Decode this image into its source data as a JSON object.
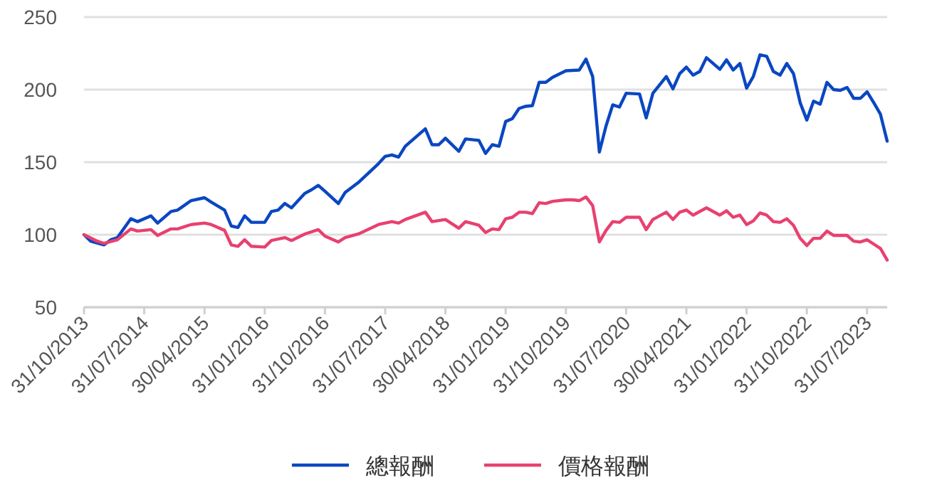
{
  "chart_data": {
    "type": "line",
    "xlim": [
      "2013-10",
      "2023-10"
    ],
    "ylim": [
      50,
      250
    ],
    "yticks": [
      50,
      100,
      150,
      200,
      250
    ],
    "xticks": [
      {
        "value": "2013-10",
        "label": "31/10/2013"
      },
      {
        "value": "2014-07",
        "label": "31/07/2014"
      },
      {
        "value": "2015-04",
        "label": "30/04/2015"
      },
      {
        "value": "2016-01",
        "label": "31/01/2016"
      },
      {
        "value": "2016-10",
        "label": "31/10/2016"
      },
      {
        "value": "2017-07",
        "label": "31/07/2017"
      },
      {
        "value": "2018-04",
        "label": "30/04/2018"
      },
      {
        "value": "2019-01",
        "label": "31/01/2019"
      },
      {
        "value": "2019-10",
        "label": "31/10/2019"
      },
      {
        "value": "2020-07",
        "label": "31/07/2020"
      },
      {
        "value": "2021-04",
        "label": "30/04/2021"
      },
      {
        "value": "2022-01",
        "label": "31/01/2022"
      },
      {
        "value": "2022-10",
        "label": "31/10/2022"
      },
      {
        "value": "2023-07",
        "label": "31/07/2023"
      }
    ],
    "grid": "y",
    "legend": "bottom",
    "marker": "none",
    "line_style": "solid",
    "series": [
      {
        "name": "總報酬",
        "color": "#0a47c1",
        "x": [
          "2013-10",
          "2013-11",
          "2014-01",
          "2014-02",
          "2014-03",
          "2014-05",
          "2014-06",
          "2014-08",
          "2014-09",
          "2014-11",
          "2014-12",
          "2015-02",
          "2015-04",
          "2015-05",
          "2015-07",
          "2015-08",
          "2015-09",
          "2015-10",
          "2015-11",
          "2016-01",
          "2016-02",
          "2016-03",
          "2016-04",
          "2016-05",
          "2016-07",
          "2016-08",
          "2016-09",
          "2016-10",
          "2016-12",
          "2017-01",
          "2017-03",
          "2017-06",
          "2017-07",
          "2017-08",
          "2017-09",
          "2017-10",
          "2018-01",
          "2018-02",
          "2018-03",
          "2018-04",
          "2018-06",
          "2018-07",
          "2018-09",
          "2018-10",
          "2018-11",
          "2018-12",
          "2019-01",
          "2019-02",
          "2019-03",
          "2019-04",
          "2019-05",
          "2019-06",
          "2019-07",
          "2019-08",
          "2019-10",
          "2019-12",
          "2020-01",
          "2020-02",
          "2020-03",
          "2020-04",
          "2020-05",
          "2020-06",
          "2020-07",
          "2020-09",
          "2020-10",
          "2020-11",
          "2021-01",
          "2021-02",
          "2021-03",
          "2021-04",
          "2021-05",
          "2021-06",
          "2021-07",
          "2021-09",
          "2021-10",
          "2021-11",
          "2021-12",
          "2022-01",
          "2022-02",
          "2022-03",
          "2022-04",
          "2022-05",
          "2022-06",
          "2022-07",
          "2022-08",
          "2022-09",
          "2022-10",
          "2022-11",
          "2022-12",
          "2023-01",
          "2023-02",
          "2023-03",
          "2023-04",
          "2023-05",
          "2023-06",
          "2023-07",
          "2023-08",
          "2023-09",
          "2023-10"
        ],
        "values": [
          100,
          95.5,
          93,
          96.5,
          98,
          111,
          109,
          113,
          108,
          116,
          117,
          123.5,
          125.5,
          122.5,
          117,
          106,
          105,
          113,
          108.5,
          108.5,
          116,
          117,
          121.5,
          118.5,
          128.5,
          131,
          134,
          130,
          121.5,
          129,
          136,
          149,
          154,
          155,
          153.5,
          161,
          173,
          162,
          162,
          166.5,
          157.5,
          166,
          165,
          156,
          162,
          161,
          178,
          180,
          187,
          188.5,
          189,
          205,
          205,
          208.5,
          213,
          213.5,
          221,
          209,
          157,
          175,
          189.5,
          188,
          197.5,
          197,
          180.5,
          197.5,
          209,
          200.5,
          211,
          215.5,
          210,
          212.5,
          222,
          214,
          220.5,
          213.5,
          218,
          201,
          209,
          224,
          223,
          212.5,
          210,
          218,
          211,
          191,
          179,
          192,
          190,
          205,
          200,
          199.5,
          201.5,
          194,
          194,
          198.5,
          191,
          183,
          164.5
        ]
      },
      {
        "name": "價格報酬",
        "color": "#e8416f",
        "x": [
          "2013-10",
          "2013-12",
          "2014-01",
          "2014-03",
          "2014-05",
          "2014-06",
          "2014-08",
          "2014-09",
          "2014-11",
          "2014-12",
          "2015-02",
          "2015-04",
          "2015-05",
          "2015-07",
          "2015-08",
          "2015-09",
          "2015-10",
          "2015-11",
          "2016-01",
          "2016-02",
          "2016-04",
          "2016-05",
          "2016-07",
          "2016-09",
          "2016-10",
          "2016-12",
          "2017-01",
          "2017-03",
          "2017-06",
          "2017-08",
          "2017-09",
          "2017-10",
          "2018-01",
          "2018-02",
          "2018-04",
          "2018-06",
          "2018-07",
          "2018-09",
          "2018-10",
          "2018-11",
          "2018-12",
          "2019-01",
          "2019-02",
          "2019-03",
          "2019-04",
          "2019-05",
          "2019-06",
          "2019-07",
          "2019-08",
          "2019-10",
          "2019-11",
          "2019-12",
          "2020-01",
          "2020-02",
          "2020-03",
          "2020-04",
          "2020-05",
          "2020-06",
          "2020-07",
          "2020-09",
          "2020-10",
          "2020-11",
          "2021-01",
          "2021-02",
          "2021-03",
          "2021-04",
          "2021-05",
          "2021-07",
          "2021-09",
          "2021-10",
          "2021-11",
          "2021-12",
          "2022-01",
          "2022-02",
          "2022-03",
          "2022-04",
          "2022-05",
          "2022-06",
          "2022-07",
          "2022-08",
          "2022-09",
          "2022-10",
          "2022-11",
          "2022-12",
          "2023-01",
          "2023-02",
          "2023-04",
          "2023-05",
          "2023-06",
          "2023-07",
          "2023-08",
          "2023-09",
          "2023-10"
        ],
        "values": [
          100,
          95.5,
          94,
          96.5,
          104,
          102.5,
          103.5,
          99.5,
          104,
          104,
          107,
          108,
          107,
          103,
          93,
          92,
          96.5,
          92,
          91.5,
          96,
          98,
          96,
          100.5,
          103.5,
          99,
          95,
          98,
          100.5,
          107,
          109,
          108,
          110.5,
          115.5,
          109,
          110.5,
          104.5,
          109,
          106.5,
          101.5,
          104,
          103.5,
          111,
          112,
          115.5,
          115.5,
          114.5,
          122,
          121.5,
          123,
          124,
          124,
          123.5,
          126,
          120,
          95,
          103,
          109,
          108.5,
          112,
          112,
          103.5,
          110.5,
          115.5,
          110.5,
          115.5,
          117,
          113.5,
          118.5,
          113.5,
          116.5,
          112,
          113.5,
          107,
          109.5,
          115,
          113.5,
          109,
          108.5,
          111,
          106.5,
          97.5,
          92.5,
          97.5,
          97.5,
          102.5,
          99.5,
          99.5,
          95.5,
          95,
          96.5,
          93.5,
          90.5,
          82.5
        ]
      }
    ]
  }
}
